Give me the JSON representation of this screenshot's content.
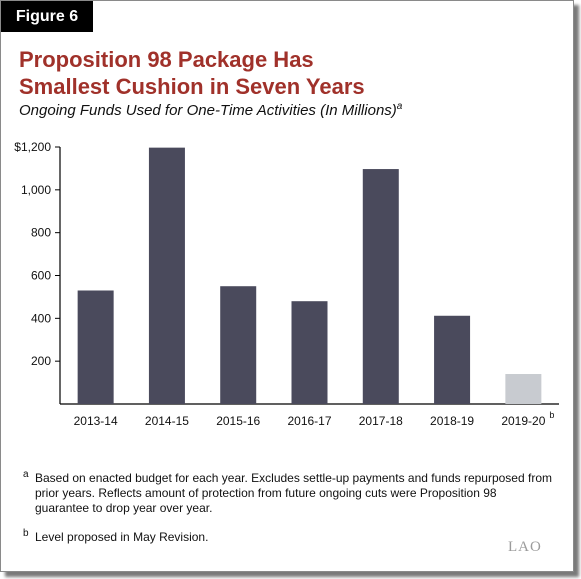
{
  "figure_label": "Figure 6",
  "title_line1": "Proposition 98 Package Has",
  "title_line2": "Smallest Cushion in Seven Years",
  "subtitle": "Ongoing Funds Used for One-Time Activities (In Millions)",
  "subtitle_note_mark": "a",
  "colors": {
    "bar": "#4a4a5c",
    "bar_proposed": "#c8cbd0",
    "title": "#a0312a"
  },
  "chart_data": {
    "type": "bar",
    "categories": [
      "2013-14",
      "2014-15",
      "2015-16",
      "2016-17",
      "2017-18",
      "2018-19",
      "2019-20"
    ],
    "category_note_marks": [
      "",
      "",
      "",
      "",
      "",
      "",
      "b"
    ],
    "values": [
      530,
      1197,
      550,
      480,
      1097,
      412,
      140
    ],
    "proposed": [
      false,
      false,
      false,
      false,
      false,
      false,
      true
    ],
    "ylim": [
      0,
      1200
    ],
    "yticks": [
      200,
      400,
      600,
      800,
      1000,
      1200
    ],
    "ytick_labels": [
      "200",
      "400",
      "600",
      "800",
      "1,000",
      "$1,200"
    ],
    "grid": false,
    "xlabel": "",
    "ylabel": ""
  },
  "footnotes": {
    "a_mark": "a",
    "a_text": "Based on enacted budget for each year. Excludes settle-up payments and funds repurposed from prior years. Reflects amount of protection from future ongoing cuts were Proposition 98 guarantee to drop year over year.",
    "b_mark": "b",
    "b_text": "Level proposed in May Revision."
  },
  "logo_text": "LAO"
}
